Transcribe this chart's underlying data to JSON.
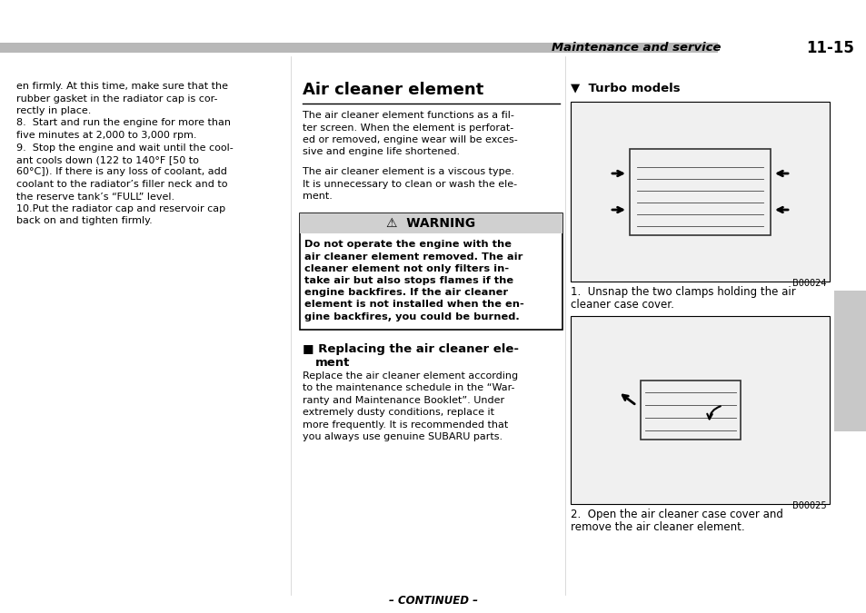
{
  "page_bg": "#ffffff",
  "header_bar_color": "#b8b8b8",
  "header_italic": "Maintenance and service",
  "header_bold": "11-15",
  "col1_lines": [
    "en firmly. At this time, make sure that the",
    "rubber gasket in the radiator cap is cor-",
    "rectly in place.",
    "8.  Start and run the engine for more than",
    "five minutes at 2,000 to 3,000 rpm.",
    "9.  Stop the engine and wait until the cool-",
    "ant cools down (122 to 140°F [50 to",
    "60°C]). If there is any loss of coolant, add",
    "coolant to the radiator’s filler neck and to",
    "the reserve tank’s “FULL” level.",
    "10.Put the radiator cap and reservoir cap",
    "back on and tighten firmly."
  ],
  "col2_title": "Air cleaner element",
  "col2_p1": [
    "The air cleaner element functions as a fil-",
    "ter screen. When the element is perforat-",
    "ed or removed, engine wear will be exces-",
    "sive and engine life shortened."
  ],
  "col2_p2": [
    "The air cleaner element is a viscous type.",
    "It is unnecessary to clean or wash the ele-",
    "ment."
  ],
  "warning_title": "WARNING",
  "warning_lines": [
    "Do not operate the engine with the",
    "air cleaner element removed. The air",
    "cleaner element not only filters in-",
    "take air but also stops flames if the",
    "engine backfires. If the air cleaner",
    "element is not installed when the en-",
    "gine backfires, you could be burned."
  ],
  "subhead_line1": "■ Replacing the air cleaner ele-",
  "subhead_line2": "    ment",
  "col2_p3": [
    "Replace the air cleaner element according",
    "to the maintenance schedule in the “War-",
    "ranty and Maintenance Booklet”. Under",
    "extremely dusty conditions, replace it",
    "more frequently. It is recommended that",
    "you always use genuine SUBARU parts."
  ],
  "turbo_heading": "Turbo models",
  "img1_label": "B00024",
  "img2_label": "B00025",
  "caption1_lines": [
    "1.  Unsnap the two clamps holding the air",
    "cleaner case cover."
  ],
  "caption2_lines": [
    "2.  Open the air cleaner case cover and",
    "remove the air cleaner element."
  ],
  "footer": "– CONTINUED –",
  "sidebar_color": "#c8c8c8",
  "fs_body": 8.0,
  "fs_title": 13.0,
  "fs_subhead": 9.5,
  "fs_warning_title": 10.0,
  "fs_warning_body": 8.2,
  "fs_header_italic": 9.5,
  "fs_header_bold": 12.0,
  "fs_caption": 8.5,
  "fs_footer": 8.5,
  "fs_turbo": 9.5,
  "fs_imgcode": 7.0
}
